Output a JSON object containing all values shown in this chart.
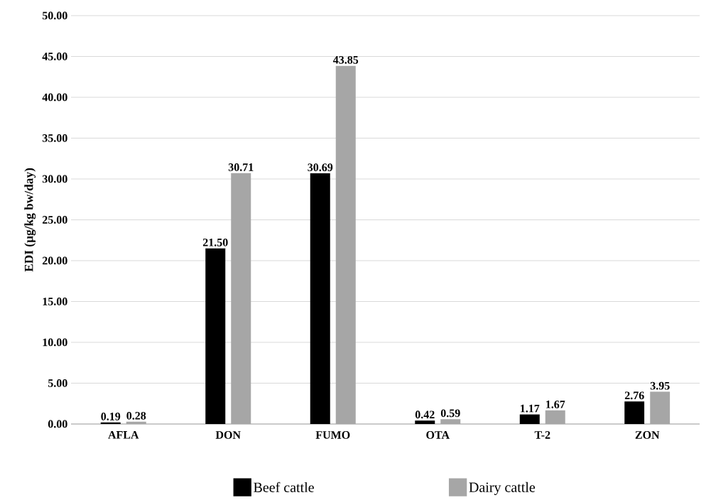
{
  "chart_data": {
    "type": "bar",
    "ylabel": "EDI (µg/kg bw/day)",
    "categories": [
      "AFLA",
      "DON",
      "FUMO",
      "OTA",
      "T-2",
      "ZON"
    ],
    "series": [
      {
        "name": "Beef cattle",
        "color": "#000000",
        "values": [
          0.19,
          21.5,
          30.69,
          0.42,
          1.17,
          2.76
        ],
        "value_labels": [
          "0.19",
          "21.50",
          "30.69",
          "0.42",
          "1.17",
          "2.76"
        ]
      },
      {
        "name": "Dairy cattle",
        "color": "#a6a6a6",
        "values": [
          0.28,
          30.71,
          43.85,
          0.59,
          1.67,
          3.95
        ],
        "value_labels": [
          "0.28",
          "30.71",
          "43.85",
          "0.59",
          "1.67",
          "3.95"
        ]
      }
    ],
    "ylim": [
      0,
      50
    ],
    "yticks": [
      {
        "value": 0,
        "label": "0.00"
      },
      {
        "value": 5,
        "label": "5.00"
      },
      {
        "value": 10,
        "label": "10.00"
      },
      {
        "value": 15,
        "label": "15.00"
      },
      {
        "value": 20,
        "label": "20.00"
      },
      {
        "value": 25,
        "label": "25.00"
      },
      {
        "value": 30,
        "label": "30.00"
      },
      {
        "value": 35,
        "label": "35.00"
      },
      {
        "value": 40,
        "label": "40.00"
      },
      {
        "value": 45,
        "label": "45.00"
      },
      {
        "value": 50,
        "label": "50.00"
      }
    ],
    "grid": "y",
    "legend": "bottom"
  }
}
